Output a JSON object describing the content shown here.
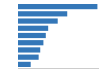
{
  "chart_data": {
    "type": "bar",
    "orientation": "horizontal",
    "values": [
      100,
      62,
      50,
      38,
      35,
      32,
      28,
      26,
      16
    ],
    "color": "#3477B8",
    "xlim": [
      0,
      102
    ],
    "tick_labels": false,
    "grid": false
  }
}
